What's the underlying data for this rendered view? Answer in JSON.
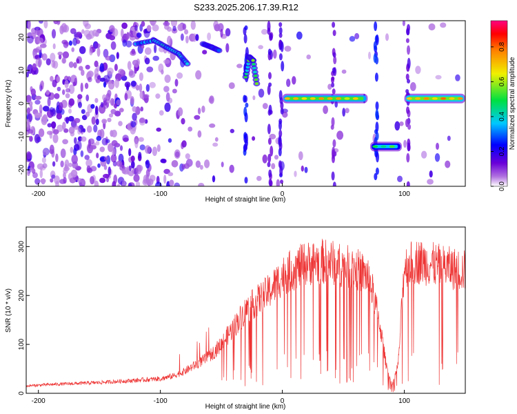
{
  "chart_data": [
    {
      "type": "heatmap",
      "title": "S233.2025.206.17.39.R12",
      "xlabel": "Height of straight line (km)",
      "ylabel": "Frequency (Hz)",
      "xlim": [
        -210,
        150
      ],
      "ylim": [
        -25,
        25
      ],
      "xticks": [
        -200,
        -100,
        0,
        100
      ],
      "yticks": [
        -20,
        -10,
        0,
        10,
        20
      ],
      "colorbar": {
        "label": "Normalized spectral amplitude",
        "range": [
          0.0,
          0.95
        ],
        "ticks": [
          0.0,
          0.2,
          0.4,
          0.6,
          0.8
        ],
        "colormap": "rainbow (white-purple-blue-cyan-green-yellow-red-magenta)"
      },
      "features": [
        {
          "name": "dispersed tone band",
          "x": [
            -120,
            -105,
            -95,
            -85,
            -78
          ],
          "y": [
            18,
            19,
            17,
            15,
            12
          ],
          "amplitude": 0.4
        },
        {
          "name": "upper arc",
          "x": [
            -65,
            -58,
            -52
          ],
          "y": [
            18,
            17,
            16
          ],
          "amplitude": 0.3
        },
        {
          "name": "peak feature",
          "x": [
            -30,
            -27,
            -24,
            -21
          ],
          "y": [
            8,
            14,
            13,
            6
          ],
          "amplitude": 0.55
        },
        {
          "name": "tone near 1.5 Hz",
          "x_range": [
            0,
            70
          ],
          "y": 1.5,
          "amplitude": 0.8
        },
        {
          "name": "tone near -13 Hz",
          "x_range": [
            72,
            98
          ],
          "y": -13,
          "amplitude": 0.55
        },
        {
          "name": "tone near 1.5 Hz (right)",
          "x_range": [
            100,
            150
          ],
          "y": 1.5,
          "amplitude": 0.85
        }
      ]
    },
    {
      "type": "line",
      "xlabel": "Height of straight line (km)",
      "ylabel": "SNR (10 * v/v)",
      "xlim": [
        -210,
        150
      ],
      "ylim": [
        0,
        340
      ],
      "xticks": [
        -200,
        -100,
        0,
        100
      ],
      "yticks": [
        0,
        100,
        200,
        300
      ],
      "color": "#ee3333",
      "series": [
        {
          "x": [
            -210,
            -190,
            -170,
            -150,
            -130,
            -110,
            -100,
            -90,
            -80,
            -70,
            -60,
            -50,
            -40,
            -30,
            -20,
            -10,
            0,
            10,
            20,
            30,
            40,
            50,
            60,
            70,
            75,
            80,
            85,
            90,
            95,
            100,
            110,
            120,
            130,
            140,
            150
          ],
          "y": [
            15,
            18,
            20,
            22,
            25,
            28,
            30,
            35,
            45,
            60,
            75,
            100,
            135,
            170,
            190,
            210,
            240,
            255,
            265,
            270,
            268,
            260,
            255,
            240,
            200,
            140,
            60,
            15,
            60,
            260,
            270,
            265,
            260,
            255,
            250
          ]
        }
      ]
    }
  ]
}
